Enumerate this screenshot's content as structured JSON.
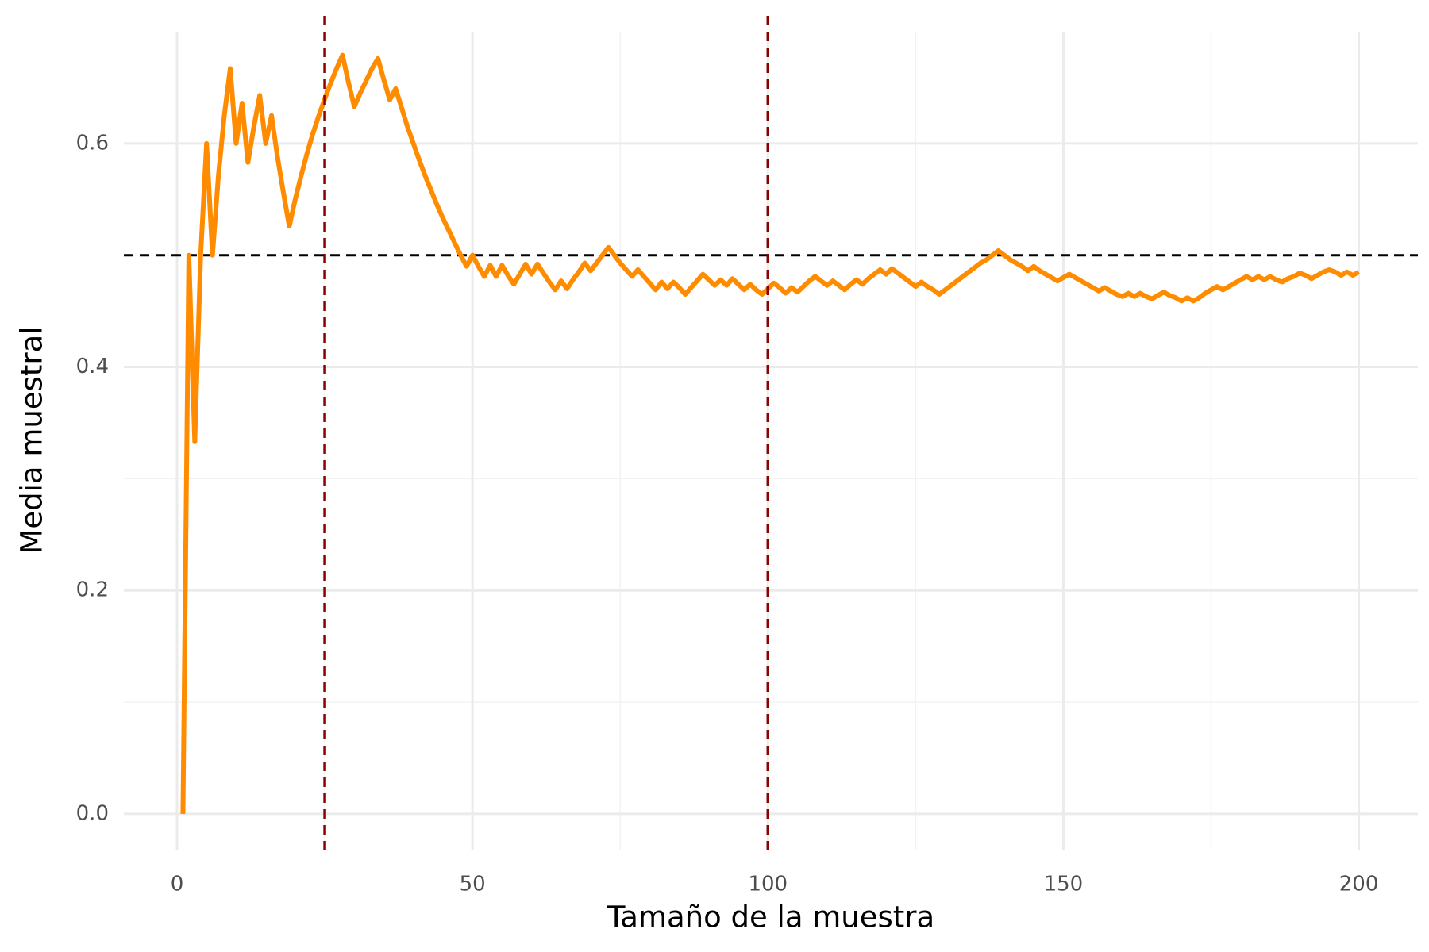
{
  "chart_data": {
    "type": "line",
    "xlabel": "Tamaño de la muestra",
    "ylabel": "Media muestral",
    "x": [
      1,
      2,
      3,
      4,
      5,
      6,
      7,
      8,
      9,
      10,
      11,
      12,
      13,
      14,
      15,
      16,
      17,
      18,
      19,
      20,
      21,
      22,
      23,
      24,
      25,
      26,
      27,
      28,
      29,
      30,
      31,
      32,
      33,
      34,
      35,
      36,
      37,
      38,
      39,
      40,
      41,
      42,
      43,
      44,
      45,
      46,
      47,
      48,
      49,
      50,
      51,
      52,
      53,
      54,
      55,
      56,
      57,
      58,
      59,
      60,
      61,
      62,
      63,
      64,
      65,
      66,
      67,
      68,
      69,
      70,
      71,
      72,
      73,
      74,
      75,
      76,
      77,
      78,
      79,
      80,
      81,
      82,
      83,
      84,
      85,
      86,
      87,
      88,
      89,
      90,
      91,
      92,
      93,
      94,
      95,
      96,
      97,
      98,
      99,
      100,
      101,
      102,
      103,
      104,
      105,
      106,
      107,
      108,
      109,
      110,
      111,
      112,
      113,
      114,
      115,
      116,
      117,
      118,
      119,
      120,
      121,
      122,
      123,
      124,
      125,
      126,
      127,
      128,
      129,
      130,
      131,
      132,
      133,
      134,
      135,
      136,
      137,
      138,
      139,
      140,
      141,
      142,
      143,
      144,
      145,
      146,
      147,
      148,
      149,
      150,
      151,
      152,
      153,
      154,
      155,
      156,
      157,
      158,
      159,
      160,
      161,
      162,
      163,
      164,
      165,
      166,
      167,
      168,
      169,
      170,
      171,
      172,
      173,
      174,
      175,
      176,
      177,
      178,
      179,
      180,
      181,
      182,
      183,
      184,
      185,
      186,
      187,
      188,
      189,
      190,
      191,
      192,
      193,
      194,
      195,
      196,
      197,
      198,
      199,
      200
    ],
    "series": [
      {
        "color": "#ff8c00",
        "values": [
          0,
          0.5,
          0.333,
          0.5,
          0.6,
          0.5,
          0.571,
          0.625,
          0.667,
          0.6,
          0.636,
          0.583,
          0.615,
          0.643,
          0.6,
          0.625,
          0.588,
          0.556,
          0.526,
          0.55,
          0.571,
          0.591,
          0.609,
          0.625,
          0.64,
          0.654,
          0.667,
          0.679,
          0.655,
          0.633,
          0.645,
          0.656,
          0.667,
          0.676,
          0.657,
          0.639,
          0.649,
          0.632,
          0.615,
          0.6,
          0.585,
          0.571,
          0.558,
          0.545,
          0.533,
          0.522,
          0.511,
          0.5,
          0.49,
          0.5,
          0.49,
          0.481,
          0.491,
          0.481,
          0.491,
          0.482,
          0.474,
          0.483,
          0.492,
          0.483,
          0.492,
          0.484,
          0.476,
          0.469,
          0.477,
          0.47,
          0.478,
          0.485,
          0.493,
          0.486,
          0.493,
          0.5,
          0.507,
          0.5,
          0.493,
          0.487,
          0.481,
          0.487,
          0.481,
          0.475,
          0.469,
          0.476,
          0.47,
          0.476,
          0.471,
          0.465,
          0.471,
          0.477,
          0.483,
          0.478,
          0.473,
          0.478,
          0.473,
          0.479,
          0.474,
          0.469,
          0.474,
          0.469,
          0.465,
          0.47,
          0.475,
          0.471,
          0.466,
          0.471,
          0.467,
          0.472,
          0.477,
          0.481,
          0.477,
          0.473,
          0.477,
          0.473,
          0.469,
          0.474,
          0.478,
          0.474,
          0.479,
          0.483,
          0.487,
          0.483,
          0.488,
          0.484,
          0.48,
          0.476,
          0.472,
          0.476,
          0.472,
          0.469,
          0.465,
          0.469,
          0.473,
          0.477,
          0.481,
          0.485,
          0.489,
          0.493,
          0.496,
          0.5,
          0.504,
          0.5,
          0.496,
          0.493,
          0.49,
          0.486,
          0.49,
          0.486,
          0.483,
          0.48,
          0.477,
          0.48,
          0.483,
          0.48,
          0.477,
          0.474,
          0.471,
          0.468,
          0.471,
          0.468,
          0.465,
          0.463,
          0.466,
          0.463,
          0.466,
          0.463,
          0.461,
          0.464,
          0.467,
          0.464,
          0.462,
          0.459,
          0.462,
          0.459,
          0.462,
          0.466,
          0.469,
          0.472,
          0.469,
          0.472,
          0.475,
          0.478,
          0.481,
          0.478,
          0.481,
          0.478,
          0.481,
          0.478,
          0.476,
          0.479,
          0.481,
          0.484,
          0.482,
          0.479,
          0.482,
          0.485,
          0.487,
          0.485,
          0.482,
          0.485,
          0.482,
          0.485
        ]
      }
    ],
    "hlines": [
      {
        "value": 0.5,
        "color": "#000000"
      }
    ],
    "vlines": [
      {
        "value": 25,
        "color": "#8b0000"
      },
      {
        "value": 100,
        "color": "#8b0000"
      }
    ],
    "xlim": [
      -9,
      210
    ],
    "xticks": [
      0,
      50,
      100,
      150,
      200
    ],
    "x_minor_ticks": [
      25,
      75,
      125,
      175
    ],
    "ylim": [
      -0.032,
      0.7
    ],
    "yticks": [
      {
        "value": 0,
        "label": "0.0"
      },
      {
        "value": 0.2,
        "label": "0.2"
      },
      {
        "value": 0.4,
        "label": "0.4"
      },
      {
        "value": 0.6,
        "label": "0.6"
      }
    ],
    "y_minor_ticks": [
      0.1,
      0.3,
      0.5
    ],
    "grid": true
  }
}
